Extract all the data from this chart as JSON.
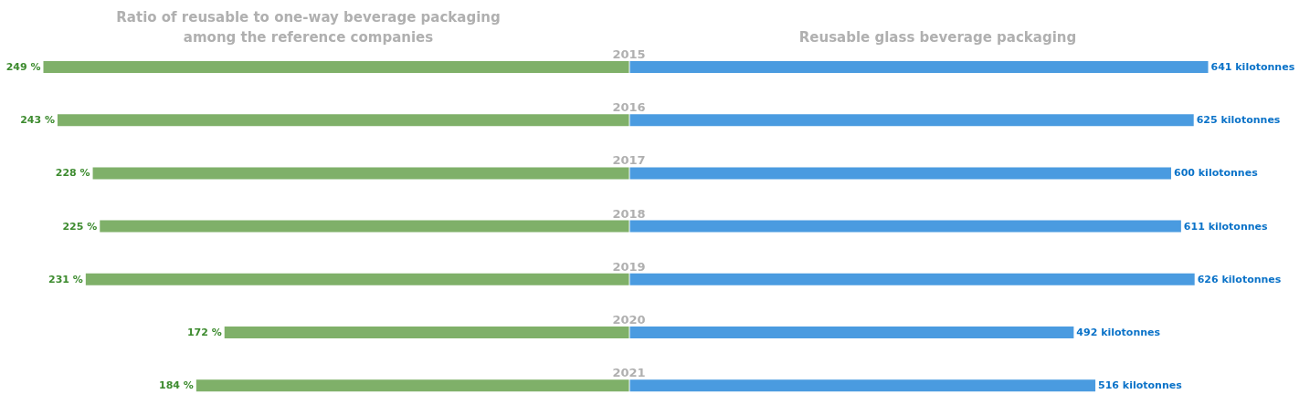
{
  "chart_data": [
    {
      "type": "bar",
      "orientation": "horizontal",
      "title": "Ratio of reusable to one-way beverage packaging among the reference companies",
      "categories": [
        "2015",
        "2016",
        "2017",
        "2018",
        "2019",
        "2020",
        "2021"
      ],
      "color": "#7fb069",
      "values": [
        249,
        243,
        228,
        225,
        231,
        172,
        184
      ],
      "value_labels": [
        "249 %",
        "243 %",
        "228 %",
        "225 %",
        "231 %",
        "172 %",
        "184 %"
      ]
    },
    {
      "type": "bar",
      "orientation": "horizontal",
      "title": "Reusable glass beverage packaging",
      "color": "#4a9be0",
      "values": [
        641,
        625,
        600,
        611,
        626,
        492,
        516
      ],
      "value_labels": [
        "641 kilotonnes",
        "625 kilotonnes",
        "600 kilotonnes",
        "611 kilotonnes",
        "626 kilotonnes",
        "492 kilotonnes",
        "516 kilotonnes"
      ]
    }
  ]
}
